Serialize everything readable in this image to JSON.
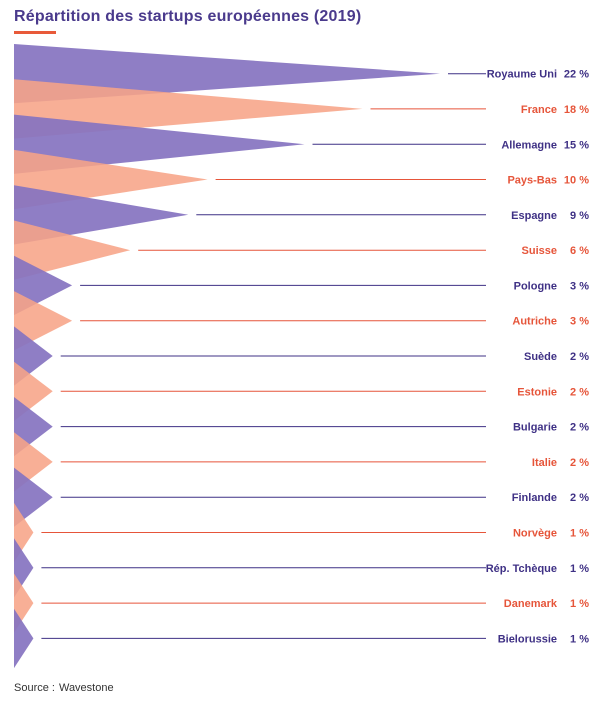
{
  "colors": {
    "purple": "#8573c0",
    "orange": "#f7a488",
    "purple_text": "#3f3185",
    "orange_text": "#e6553a",
    "accent": "#e85a3a"
  },
  "chart_data": {
    "type": "bar",
    "title": "Répartition des startups européennes (2019)",
    "categories": [
      "Royaume Uni",
      "France",
      "Allemagne",
      "Pays-Bas",
      "Espagne",
      "Suisse",
      "Pologne",
      "Autriche",
      "Suède",
      "Estonie",
      "Bulgarie",
      "Italie",
      "Finlande",
      "Norvège",
      "Rép. Tchèque",
      "Danemark",
      "Bielorussie"
    ],
    "values": [
      22,
      18,
      15,
      10,
      9,
      6,
      3,
      3,
      2,
      2,
      2,
      2,
      2,
      1,
      1,
      1,
      1
    ],
    "value_labels": [
      "22 %",
      "18 %",
      "15 %",
      "10 %",
      "9 %",
      "6 %",
      "3 %",
      "3 %",
      "2 %",
      "2 %",
      "2 %",
      "2 %",
      "2 %",
      "1 %",
      "1 %",
      "1 %",
      "1 %"
    ],
    "unit": "%",
    "orientation": "horizontal",
    "xlim": [
      0,
      22
    ],
    "grid": false,
    "legend": "none"
  },
  "source": {
    "label": "Source :",
    "text": "Wavestone"
  }
}
